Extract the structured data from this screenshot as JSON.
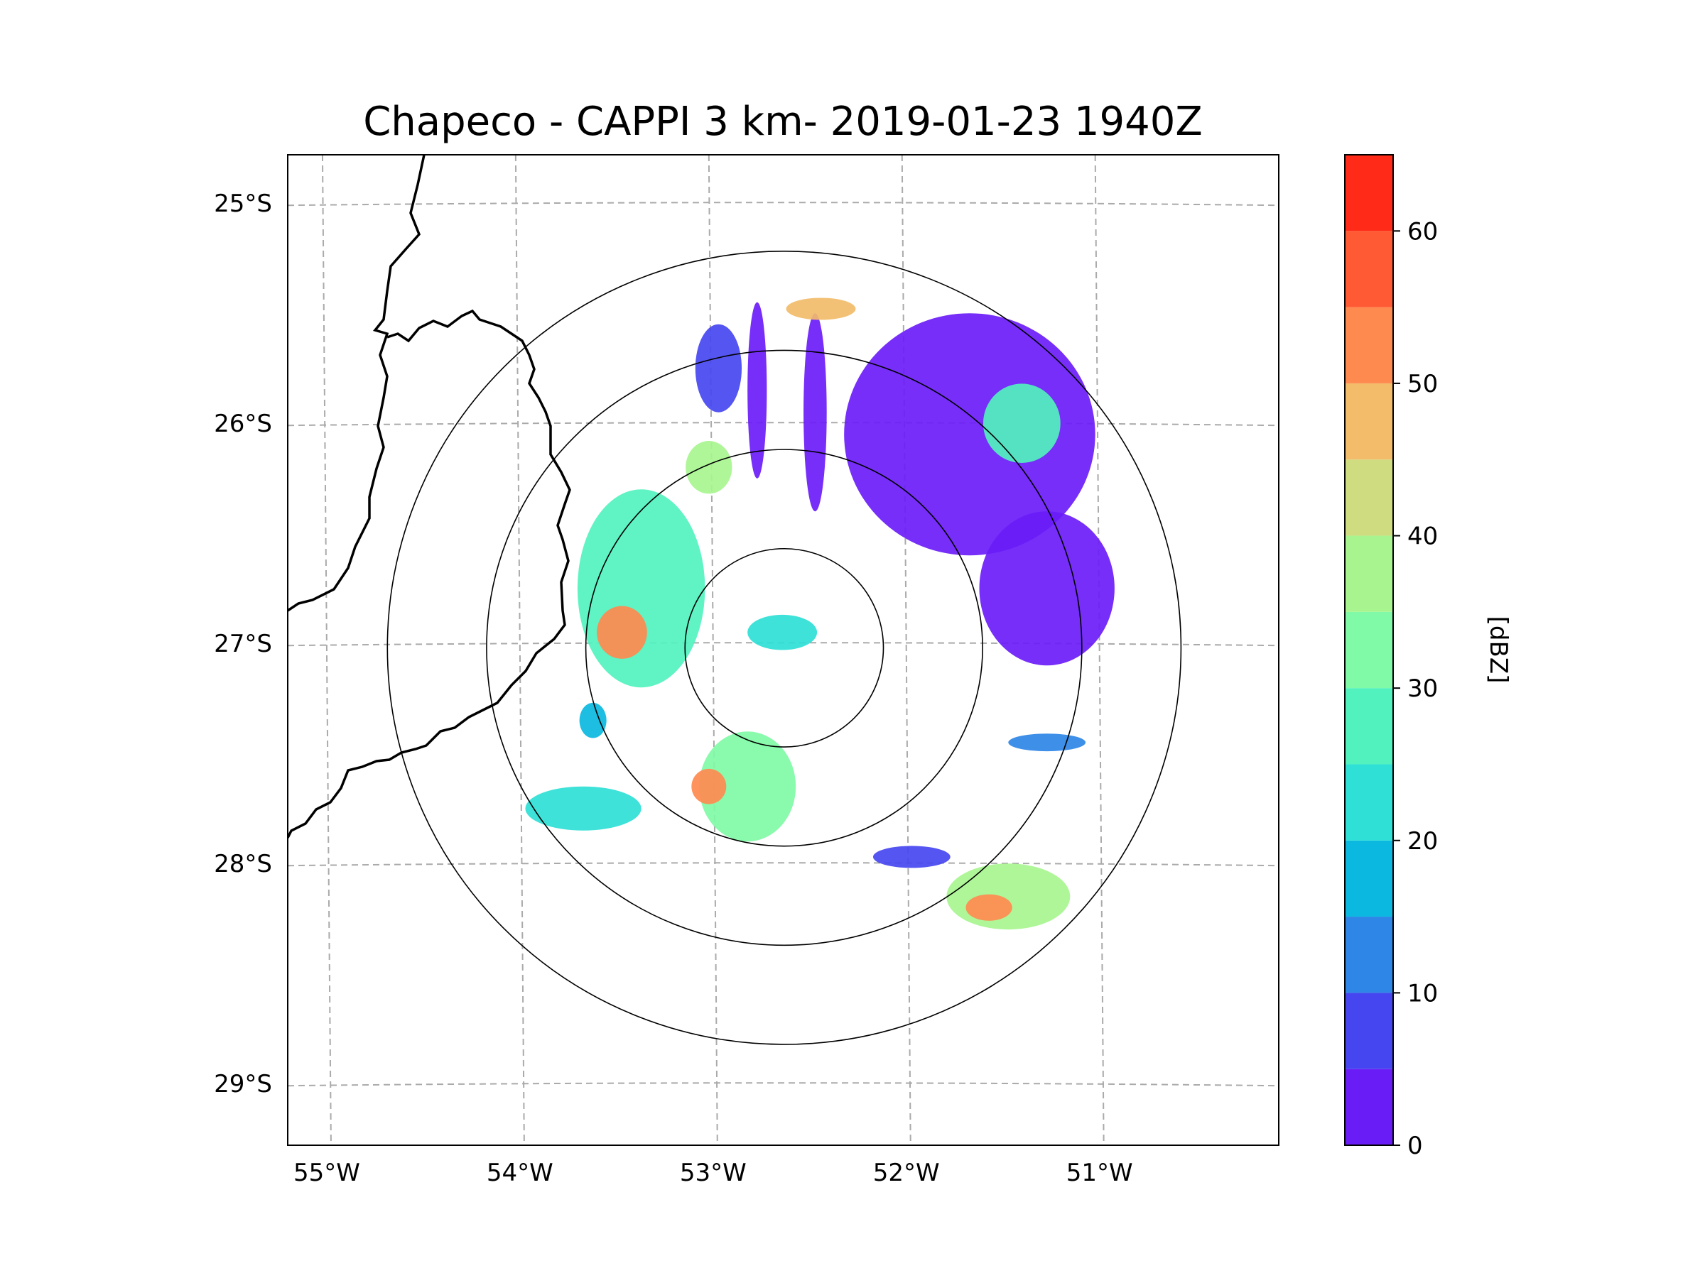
{
  "chart_data": {
    "type": "heatmap",
    "title": "Chapeco - CAPPI 3 km- 2019-01-23 1940Z",
    "xlabel": "",
    "ylabel": "",
    "projection": "map",
    "grid": true,
    "lon_ticks": [
      -55,
      -54,
      -53,
      -52,
      -51
    ],
    "lon_tick_labels": [
      "55°W",
      "54°W",
      "53°W",
      "52°W",
      "51°W"
    ],
    "lat_ticks": [
      -25,
      -26,
      -27,
      -28,
      -29
    ],
    "lat_tick_labels": [
      "25°S",
      "26°S",
      "27°S",
      "28°S",
      "29°S"
    ],
    "xlim": [
      -55.18,
      -50.05
    ],
    "ylim": [
      -29.28,
      -24.78
    ],
    "radar_center": {
      "lon": -52.61,
      "lat": -27.02
    },
    "range_rings_km": [
      50,
      100,
      150,
      200
    ],
    "colorbar": {
      "label": "[dBZ]",
      "min": 0,
      "max": 65,
      "ticks": [
        0,
        10,
        20,
        30,
        40,
        50,
        60
      ],
      "tick_labels": [
        "0",
        "10",
        "20",
        "30",
        "40",
        "50",
        "60"
      ],
      "bins": [
        {
          "from": 0,
          "to": 5,
          "color": "#6a1cf7"
        },
        {
          "from": 5,
          "to": 10,
          "color": "#4646f0"
        },
        {
          "from": 10,
          "to": 15,
          "color": "#2e86e6"
        },
        {
          "from": 15,
          "to": 20,
          "color": "#0ab8e0"
        },
        {
          "from": 20,
          "to": 25,
          "color": "#2ee0d6"
        },
        {
          "from": 25,
          "to": 30,
          "color": "#52f2be"
        },
        {
          "from": 30,
          "to": 35,
          "color": "#80faa6"
        },
        {
          "from": 35,
          "to": 40,
          "color": "#a8f590"
        },
        {
          "from": 40,
          "to": 45,
          "color": "#d0dc80"
        },
        {
          "from": 45,
          "to": 50,
          "color": "#f2bc6a"
        },
        {
          "from": 50,
          "to": 55,
          "color": "#ff8a50"
        },
        {
          "from": 55,
          "to": 60,
          "color": "#ff5a34"
        },
        {
          "from": 60,
          "to": 65,
          "color": "#ff2a18"
        }
      ]
    },
    "echo_regions": [
      {
        "name": "west-cell",
        "lon": -53.35,
        "lat": -26.75,
        "rx": 0.33,
        "ry": 0.45,
        "dbz": 28
      },
      {
        "name": "west-cell-core",
        "lon": -53.45,
        "lat": -26.95,
        "rx": 0.13,
        "ry": 0.12,
        "dbz": 52
      },
      {
        "name": "northwest-cell",
        "lon": -53.0,
        "lat": -26.2,
        "rx": 0.12,
        "ry": 0.12,
        "dbz": 36
      },
      {
        "name": "north-band-1",
        "lon": -52.95,
        "lat": -25.75,
        "rx": 0.12,
        "ry": 0.2,
        "dbz": 8
      },
      {
        "name": "north-band-2",
        "lon": -52.75,
        "lat": -25.85,
        "rx": 0.05,
        "ry": 0.4,
        "dbz": 4
      },
      {
        "name": "north-band-3",
        "lon": -52.45,
        "lat": -25.95,
        "rx": 0.06,
        "ry": 0.45,
        "dbz": 3
      },
      {
        "name": "north-top-cell",
        "lon": -52.42,
        "lat": -25.48,
        "rx": 0.18,
        "ry": 0.05,
        "dbz": 45
      },
      {
        "name": "northeast-field",
        "lon": -51.65,
        "lat": -26.05,
        "rx": 0.65,
        "ry": 0.55,
        "dbz": 3
      },
      {
        "name": "northeast-edge",
        "lon": -51.38,
        "lat": -26.0,
        "rx": 0.2,
        "ry": 0.18,
        "dbz": 28
      },
      {
        "name": "east-field",
        "lon": -51.25,
        "lat": -26.75,
        "rx": 0.35,
        "ry": 0.35,
        "dbz": 4
      },
      {
        "name": "south-cell",
        "lon": -52.8,
        "lat": -27.65,
        "rx": 0.25,
        "ry": 0.25,
        "dbz": 32
      },
      {
        "name": "south-cell-core",
        "lon": -53.0,
        "lat": -27.65,
        "rx": 0.09,
        "ry": 0.08,
        "dbz": 52
      },
      {
        "name": "southwest-band",
        "lon": -53.65,
        "lat": -27.75,
        "rx": 0.3,
        "ry": 0.1,
        "dbz": 20
      },
      {
        "name": "southwest-spot",
        "lon": -53.6,
        "lat": -27.35,
        "rx": 0.07,
        "ry": 0.08,
        "dbz": 18
      },
      {
        "name": "southeast-cell",
        "lon": -51.45,
        "lat": -28.15,
        "rx": 0.32,
        "ry": 0.15,
        "dbz": 36
      },
      {
        "name": "southeast-core",
        "lon": -51.55,
        "lat": -28.2,
        "rx": 0.12,
        "ry": 0.06,
        "dbz": 52
      },
      {
        "name": "east-streak",
        "lon": -51.25,
        "lat": -27.45,
        "rx": 0.2,
        "ry": 0.04,
        "dbz": 14
      },
      {
        "name": "south-streak",
        "lon": -51.95,
        "lat": -27.97,
        "rx": 0.2,
        "ry": 0.05,
        "dbz": 8
      },
      {
        "name": "near-range-clutter",
        "lon": -52.62,
        "lat": -26.95,
        "rx": 0.18,
        "ry": 0.08,
        "dbz": 22
      }
    ]
  }
}
